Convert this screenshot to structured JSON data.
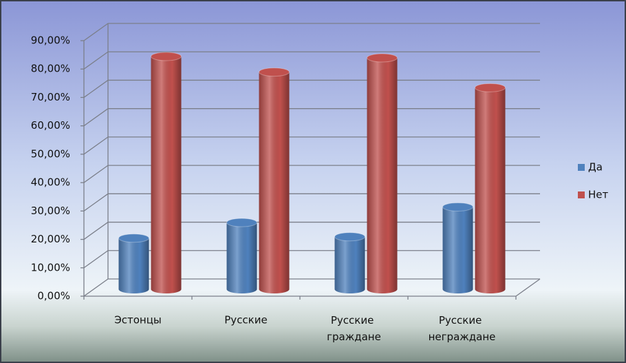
{
  "chart_data": {
    "type": "bar3d",
    "categories": [
      "Эстонцы",
      "Русские",
      "Русские граждане",
      "Русские неграждане"
    ],
    "series": [
      {
        "name": "Да",
        "color": "#4f81bd",
        "values": [
          18,
          23.5,
          18.5,
          29
        ]
      },
      {
        "name": "Нет",
        "color": "#c0504d",
        "values": [
          82,
          76.5,
          81.5,
          71
        ]
      }
    ],
    "ylim": [
      0,
      90
    ],
    "yticks": [
      {
        "value": 0,
        "label": "0,00%"
      },
      {
        "value": 10,
        "label": "10,00%"
      },
      {
        "value": 20,
        "label": "20,00%"
      },
      {
        "value": 30,
        "label": "30,00%"
      },
      {
        "value": 40,
        "label": "40,00%"
      },
      {
        "value": 50,
        "label": "50,00%"
      },
      {
        "value": 60,
        "label": "60,00%"
      },
      {
        "value": 70,
        "label": "70,00%"
      },
      {
        "value": 80,
        "label": "80,00%"
      },
      {
        "value": 90,
        "label": "90,00%"
      }
    ],
    "grid": true,
    "legend": "right"
  }
}
